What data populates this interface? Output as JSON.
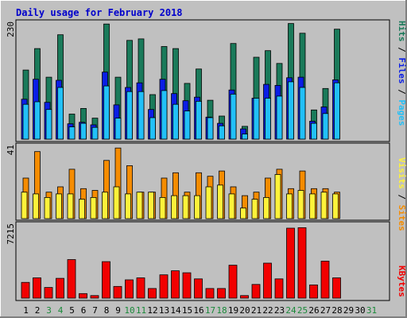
{
  "title": "Daily usage for February 2018",
  "colors": {
    "background": "#c0c0c0",
    "title": "#0000cc",
    "hits": "#1a7a5a",
    "files": "#0a1ee6",
    "pages": "#22c0f8",
    "visits": "#f58c00",
    "sites": "#fff23a",
    "kbytes": "#f20000",
    "weekend_day": "#1a8a3a"
  },
  "chart_data": [
    {
      "type": "bar",
      "title": "Daily usage for February 2018",
      "ylabel_parts": [
        "Pages",
        "Files",
        "Hits"
      ],
      "ymax_label": "230",
      "ylim": [
        0,
        230
      ],
      "categories": [
        "1",
        "2",
        "3",
        "4",
        "5",
        "6",
        "7",
        "8",
        "9",
        "10",
        "11",
        "12",
        "13",
        "14",
        "15",
        "16",
        "17",
        "18",
        "19",
        "20",
        "21",
        "22",
        "23",
        "24",
        "25",
        "26",
        "27",
        "28",
        "29",
        "30",
        "31"
      ],
      "series": [
        {
          "name": "Hits",
          "values": [
            135,
            177,
            121,
            204,
            49,
            60,
            41,
            225,
            121,
            193,
            196,
            87,
            181,
            177,
            109,
            137,
            76,
            45,
            187,
            25,
            160,
            173,
            148,
            226,
            207,
            57,
            99,
            215,
            0,
            0,
            0
          ]
        },
        {
          "name": "Files",
          "values": [
            78,
            117,
            72,
            115,
            30,
            33,
            28,
            131,
            67,
            101,
            110,
            58,
            117,
            89,
            75,
            82,
            43,
            31,
            96,
            20,
            80,
            107,
            105,
            120,
            121,
            35,
            63,
            116,
            0,
            0,
            0
          ]
        },
        {
          "name": "Pages",
          "values": [
            68,
            73,
            58,
            101,
            24,
            31,
            23,
            104,
            41,
            93,
            93,
            42,
            95,
            68,
            55,
            74,
            42,
            26,
            88,
            10,
            80,
            80,
            84,
            112,
            101,
            31,
            50,
            110,
            0,
            0,
            0
          ]
        }
      ]
    },
    {
      "type": "bar",
      "ylabel_parts": [
        "Sites",
        "Visits"
      ],
      "ymax_label": "41",
      "ylim": [
        0,
        41
      ],
      "categories": [
        "1",
        "2",
        "3",
        "4",
        "5",
        "6",
        "7",
        "8",
        "9",
        "10",
        "11",
        "12",
        "13",
        "14",
        "15",
        "16",
        "17",
        "18",
        "19",
        "20",
        "21",
        "22",
        "23",
        "24",
        "25",
        "26",
        "27",
        "28",
        "29",
        "30",
        "31"
      ],
      "series": [
        {
          "name": "Sites",
          "values": [
            15,
            14,
            12,
            14,
            14,
            11,
            12,
            15,
            18,
            14,
            15,
            15,
            12,
            13,
            13,
            13,
            18,
            19,
            14,
            6,
            11,
            12,
            25,
            14,
            16,
            14,
            15,
            14,
            0,
            0,
            0
          ]
        },
        {
          "name": "Visits",
          "values": [
            23,
            38,
            15,
            18,
            28,
            17,
            16,
            33,
            40,
            30,
            15,
            15,
            23,
            26,
            15,
            26,
            24,
            27,
            18,
            13,
            15,
            23,
            28,
            17,
            27,
            17,
            17,
            15,
            0,
            0,
            0
          ]
        }
      ]
    },
    {
      "type": "bar",
      "ylabel": "KBytes",
      "ymax_label": "7215",
      "ylim": [
        0,
        7215
      ],
      "categories": [
        "1",
        "2",
        "3",
        "4",
        "5",
        "6",
        "7",
        "8",
        "9",
        "10",
        "11",
        "12",
        "13",
        "14",
        "15",
        "16",
        "17",
        "18",
        "19",
        "20",
        "21",
        "22",
        "23",
        "24",
        "25",
        "26",
        "27",
        "28",
        "29",
        "30",
        "31"
      ],
      "series": [
        {
          "name": "KBytes",
          "values": [
            1550,
            2000,
            1050,
            1950,
            3800,
            450,
            250,
            3600,
            1150,
            1800,
            2000,
            950,
            2300,
            2700,
            2500,
            1900,
            950,
            950,
            3250,
            250,
            1350,
            3450,
            1900,
            6900,
            6950,
            1300,
            3650,
            2000,
            0,
            0,
            0
          ]
        }
      ]
    }
  ],
  "x_axis": {
    "labels": [
      "1",
      "2",
      "3",
      "4",
      "5",
      "6",
      "7",
      "8",
      "9",
      "10",
      "11",
      "12",
      "13",
      "14",
      "15",
      "16",
      "17",
      "18",
      "19",
      "20",
      "21",
      "22",
      "23",
      "24",
      "25",
      "26",
      "27",
      "28",
      "29",
      "30",
      "31"
    ],
    "weekend_days": [
      3,
      4,
      10,
      11,
      17,
      18,
      24,
      25,
      31
    ]
  }
}
